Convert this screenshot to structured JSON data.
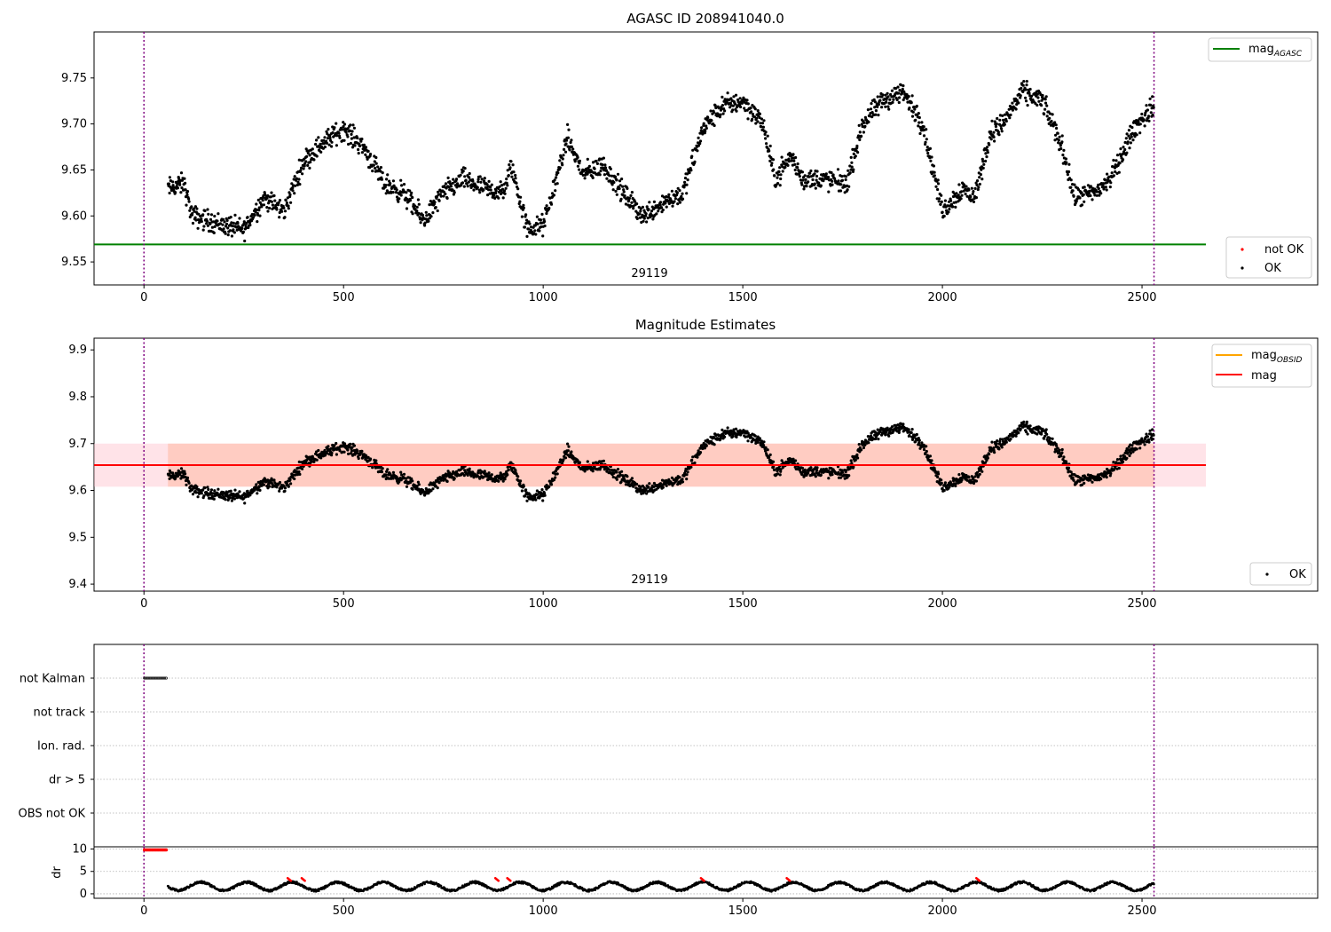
{
  "chart_data": [
    {
      "type": "scatter",
      "title": "AGASC ID 208941040.0",
      "obsid_label": "29119",
      "xlim": [
        -125,
        2940
      ],
      "ylim": [
        9.525,
        9.8
      ],
      "xticks": [
        "0",
        "500",
        "1000",
        "1500",
        "2000",
        "2500"
      ],
      "xtick_values": [
        0,
        500,
        1000,
        1500,
        2000,
        2500
      ],
      "yticks": [
        "9.55",
        "9.60",
        "9.65",
        "9.70",
        "9.75"
      ],
      "ytick_values": [
        9.55,
        9.6,
        9.65,
        9.7,
        9.75
      ],
      "vlines": [
        0,
        2530
      ],
      "hline": {
        "y": 9.569,
        "x": [
          -125,
          2660
        ],
        "label": "mag",
        "label_sub": "AGASC",
        "color": "#008000"
      },
      "legend_lines": [
        {
          "label": "mag",
          "sub": "AGASC",
          "color": "#008000"
        }
      ],
      "legend_points": [
        {
          "label": "not OK",
          "color": "#ff0000"
        },
        {
          "label": "OK",
          "color": "#000000"
        }
      ],
      "series": [
        {
          "name": "OK",
          "color": "#000000",
          "x_range": [
            60,
            2530
          ],
          "profile": [
            [
              60,
              9.63
            ],
            [
              100,
              9.635
            ],
            [
              120,
              9.6
            ],
            [
              200,
              9.59
            ],
            [
              250,
              9.585
            ],
            [
              300,
              9.62
            ],
            [
              350,
              9.605
            ],
            [
              400,
              9.66
            ],
            [
              450,
              9.68
            ],
            [
              500,
              9.695
            ],
            [
              550,
              9.675
            ],
            [
              600,
              9.635
            ],
            [
              650,
              9.625
            ],
            [
              700,
              9.595
            ],
            [
              750,
              9.625
            ],
            [
              800,
              9.64
            ],
            [
              850,
              9.63
            ],
            [
              900,
              9.625
            ],
            [
              920,
              9.655
            ],
            [
              960,
              9.585
            ],
            [
              1000,
              9.59
            ],
            [
              1020,
              9.62
            ],
            [
              1060,
              9.685
            ],
            [
              1100,
              9.645
            ],
            [
              1150,
              9.655
            ],
            [
              1200,
              9.625
            ],
            [
              1250,
              9.6
            ],
            [
              1300,
              9.615
            ],
            [
              1350,
              9.625
            ],
            [
              1400,
              9.695
            ],
            [
              1450,
              9.72
            ],
            [
              1500,
              9.725
            ],
            [
              1550,
              9.7
            ],
            [
              1580,
              9.64
            ],
            [
              1620,
              9.665
            ],
            [
              1650,
              9.64
            ],
            [
              1700,
              9.64
            ],
            [
              1760,
              9.635
            ],
            [
              1800,
              9.7
            ],
            [
              1850,
              9.725
            ],
            [
              1900,
              9.735
            ],
            [
              1950,
              9.7
            ],
            [
              2000,
              9.605
            ],
            [
              2050,
              9.63
            ],
            [
              2080,
              9.62
            ],
            [
              2120,
              9.69
            ],
            [
              2150,
              9.7
            ],
            [
              2200,
              9.735
            ],
            [
              2250,
              9.725
            ],
            [
              2300,
              9.675
            ],
            [
              2330,
              9.62
            ],
            [
              2380,
              9.625
            ],
            [
              2420,
              9.64
            ],
            [
              2480,
              9.695
            ],
            [
              2530,
              9.72
            ]
          ]
        }
      ]
    },
    {
      "type": "scatter",
      "title": "Magnitude Estimates",
      "obsid_label": "29119",
      "xlim": [
        -125,
        2940
      ],
      "ylim": [
        9.385,
        9.925
      ],
      "xticks": [
        "0",
        "500",
        "1000",
        "1500",
        "2000",
        "2500"
      ],
      "xtick_values": [
        0,
        500,
        1000,
        1500,
        2000,
        2500
      ],
      "yticks": [
        "9.4",
        "9.5",
        "9.6",
        "9.7",
        "9.8",
        "9.9"
      ],
      "ytick_values": [
        9.4,
        9.5,
        9.6,
        9.7,
        9.8,
        9.9
      ],
      "vlines": [
        0,
        2530
      ],
      "mean_mag": 9.654,
      "band": {
        "low": 9.608,
        "high": 9.7,
        "x": [
          -125,
          2660
        ]
      },
      "legend_lines": [
        {
          "label": "mag",
          "sub": "OBSID",
          "color": "#ffa500"
        },
        {
          "label": "mag",
          "sub": "",
          "color": "#ff0000"
        }
      ],
      "legend_points": [
        {
          "label": "OK",
          "color": "#000000"
        }
      ]
    },
    {
      "type": "scatter",
      "flags": [
        "not Kalman",
        "not track",
        "Ion. rad.",
        "dr > 5",
        "OBS not OK"
      ],
      "xlim": [
        -125,
        2940
      ],
      "xticks": [
        "0",
        "500",
        "1000",
        "1500",
        "2000",
        "2500"
      ],
      "xtick_values": [
        0,
        500,
        1000,
        1500,
        2000,
        2500
      ],
      "vlines": [
        0,
        2530
      ],
      "flag_points": {
        "flag": "not Kalman",
        "x_range": [
          0,
          58
        ]
      }
    },
    {
      "type": "scatter",
      "ylabel": "dr",
      "yticks": [
        "0",
        "5",
        "10"
      ],
      "ytick_values": [
        0,
        5,
        10
      ],
      "ylim": [
        -1,
        10.5
      ],
      "xlim": [
        -125,
        2940
      ],
      "xticks": [
        "0",
        "500",
        "1000",
        "1500",
        "2000",
        "2500"
      ],
      "xtick_values": [
        0,
        500,
        1000,
        1500,
        2000,
        2500
      ],
      "vlines": [
        0,
        2530
      ],
      "high_points": {
        "x_range": [
          0,
          58
        ],
        "y": 9.8,
        "color": "#ff0000"
      },
      "dr_range": [
        0.5,
        2.8
      ],
      "red_clusters": [
        360,
        395,
        880,
        910,
        1395,
        1610,
        2085
      ]
    }
  ],
  "colors": {
    "points": "#000000",
    "not_ok": "#ff0000",
    "vline": "#800080",
    "band_fill": "#ffc0cb",
    "band_overlay": "#ffa07a",
    "grid": "#b0b0b0"
  }
}
